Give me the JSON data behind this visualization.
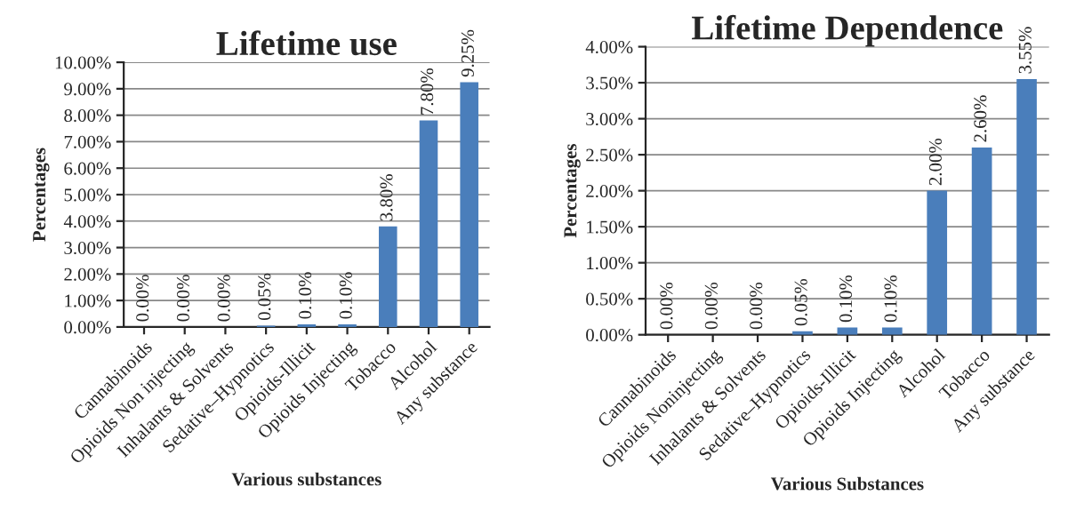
{
  "chart_data": [
    {
      "type": "bar",
      "title": "Lifetime use",
      "xlabel": "Various substances",
      "ylabel": "Percentages",
      "categories": [
        "Cannabinoids",
        "Opioids Non injecting",
        "Inhalants & Solvents",
        "Sedative–Hypnotics",
        "Opioids-Illicit",
        "Opioids Injecting",
        "Tobacco",
        "Alcohol",
        "Any substance"
      ],
      "values": [
        0,
        0,
        0,
        0.05,
        0.1,
        0.1,
        3.8,
        7.8,
        9.25
      ],
      "value_labels": [
        "0.00%",
        "0.00%",
        "0.00%",
        "0.05%",
        "0.10%",
        "0.10%",
        "3.80%",
        "7.80%",
        "9.25%"
      ],
      "color": "#4a7ebb",
      "ylim": [
        0,
        10
      ],
      "yticks": [
        {
          "value": 0,
          "label": "0.00%"
        },
        {
          "value": 1,
          "label": "1.00%"
        },
        {
          "value": 2,
          "label": "2.00%"
        },
        {
          "value": 3,
          "label": "3.00%"
        },
        {
          "value": 4,
          "label": "4.00%"
        },
        {
          "value": 5,
          "label": "5.00%"
        },
        {
          "value": 6,
          "label": "6.00%"
        },
        {
          "value": 7,
          "label": "7.00%"
        },
        {
          "value": 8,
          "label": "8.00%"
        },
        {
          "value": 9,
          "label": "9.00%"
        },
        {
          "value": 10,
          "label": "10.00%"
        }
      ],
      "grid": "y"
    },
    {
      "type": "bar",
      "title": "Lifetime Dependence",
      "xlabel": "Various Substances",
      "ylabel": "Percentages",
      "categories": [
        "Cannabinoids",
        "Opioids Noninjecting",
        "Inhalants & Solvents",
        "Sedative–Hypnotics",
        "Opioids-Illicit",
        "Opioids Injecting",
        "Alcohol",
        "Tobacco",
        "Any substance"
      ],
      "values": [
        0,
        0,
        0,
        0.05,
        0.1,
        0.1,
        2.0,
        2.6,
        3.55
      ],
      "value_labels": [
        "0.00%",
        "0.00%",
        "0.00%",
        "0.05%",
        "0.10%",
        "0.10%",
        "2.00%",
        "2.60%",
        "3.55%"
      ],
      "color": "#4a7ebb",
      "ylim": [
        0,
        4
      ],
      "yticks": [
        {
          "value": 0,
          "label": "0.00%"
        },
        {
          "value": 0.5,
          "label": "0.50%"
        },
        {
          "value": 1,
          "label": "1.00%"
        },
        {
          "value": 1.5,
          "label": "1.50%"
        },
        {
          "value": 2,
          "label": "2.00%"
        },
        {
          "value": 2.5,
          "label": "2.50%"
        },
        {
          "value": 3,
          "label": "3.00%"
        },
        {
          "value": 3.5,
          "label": "3.50%"
        },
        {
          "value": 4,
          "label": "4.00%"
        }
      ],
      "grid": "y"
    }
  ]
}
